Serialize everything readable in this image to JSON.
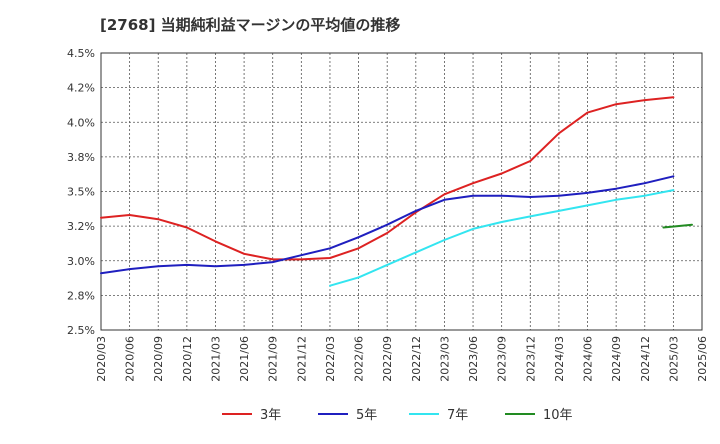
{
  "chart_data": {
    "type": "line",
    "title": "[2768]  当期純利益マージンの平均値の推移",
    "xlabel": "",
    "ylabel": "",
    "ylim": [
      2.5,
      4.5
    ],
    "yticks": [
      "2.5%",
      "2.8%",
      "3.0%",
      "3.2%",
      "3.5%",
      "3.8%",
      "4.0%",
      "4.2%",
      "4.5%"
    ],
    "xticks": [
      "2020/03",
      "2020/06",
      "2020/09",
      "2020/12",
      "2021/03",
      "2021/06",
      "2021/09",
      "2021/12",
      "2022/03",
      "2022/06",
      "2022/09",
      "2022/12",
      "2023/03",
      "2023/06",
      "2023/09",
      "2023/12",
      "2024/03",
      "2024/06",
      "2024/09",
      "2024/12",
      "2025/03",
      "2025/06"
    ],
    "grid": true,
    "legend_position": "bottom",
    "series": [
      {
        "name": "3年",
        "color": "#dd2222",
        "start_index": 0,
        "values": [
          3.31,
          3.33,
          3.3,
          3.24,
          3.14,
          3.05,
          3.01,
          3.01,
          3.02,
          3.09,
          3.2,
          3.35,
          3.48,
          3.56,
          3.63,
          3.72,
          3.92,
          4.07,
          4.13,
          4.16,
          4.18
        ]
      },
      {
        "name": "5年",
        "color": "#1f1fbf",
        "start_index": 0,
        "values": [
          2.91,
          2.94,
          2.96,
          2.97,
          2.96,
          2.97,
          2.99,
          3.04,
          3.09,
          3.17,
          3.26,
          3.36,
          3.44,
          3.47,
          3.47,
          3.46,
          3.47,
          3.49,
          3.52,
          3.56,
          3.61
        ]
      },
      {
        "name": "7年",
        "color": "#33e5f0",
        "start_index": 8,
        "values": [
          2.82,
          2.88,
          2.97,
          3.06,
          3.15,
          3.23,
          3.28,
          3.32,
          3.36,
          3.4,
          3.44,
          3.47,
          3.51
        ]
      },
      {
        "name": "10年",
        "color": "#228b22",
        "start_index": 20,
        "start_offset": -0.35,
        "values": [
          3.24,
          3.26
        ]
      }
    ]
  }
}
